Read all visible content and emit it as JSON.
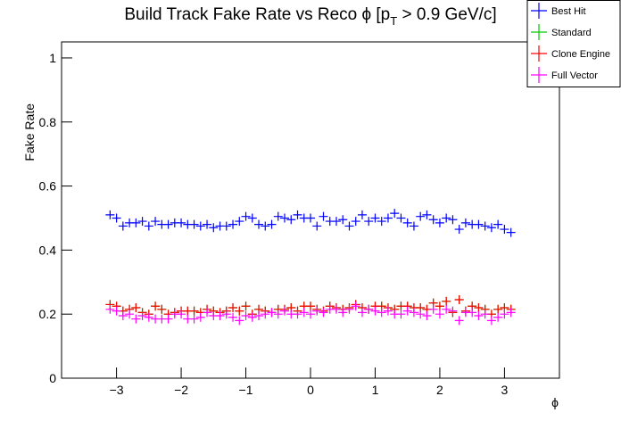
{
  "chart_data": {
    "type": "scatter",
    "title": [
      "Build Track Fake Rate vs Reco ϕ [p",
      "T",
      " > 0.9 GeV/c]"
    ],
    "x_label": "ϕ",
    "y_label": "Fake Rate",
    "xlim": [
      -3.85,
      3.85
    ],
    "ylim": [
      0,
      1.05
    ],
    "xticks": [
      {
        "value": -3,
        "label": "−3"
      },
      {
        "value": -2,
        "label": "−2"
      },
      {
        "value": -1,
        "label": "−1"
      },
      0,
      1,
      2,
      3
    ],
    "yticks": [
      0,
      0.2,
      0.4,
      0.6,
      0.8,
      1
    ],
    "legend": "top-right",
    "x": [
      -3.1,
      -3.0,
      -2.9,
      -2.8,
      -2.7,
      -2.6,
      -2.5,
      -2.4,
      -2.3,
      -2.2,
      -2.1,
      -2.0,
      -1.9,
      -1.8,
      -1.7,
      -1.6,
      -1.5,
      -1.4,
      -1.3,
      -1.2,
      -1.1,
      -1.0,
      -0.9,
      -0.8,
      -0.7,
      -0.6,
      -0.5,
      -0.4,
      -0.3,
      -0.2,
      -0.1,
      0.0,
      0.1,
      0.2,
      0.3,
      0.4,
      0.5,
      0.6,
      0.7,
      0.8,
      0.9,
      1.0,
      1.1,
      1.2,
      1.3,
      1.4,
      1.5,
      1.6,
      1.7,
      1.8,
      1.9,
      2.0,
      2.1,
      2.2,
      2.3,
      2.4,
      2.5,
      2.6,
      2.7,
      2.8,
      2.9,
      3.0,
      3.1
    ],
    "series": [
      {
        "name": "Best Hit",
        "color": "#0000ff",
        "values": [
          0.51,
          0.5,
          0.475,
          0.485,
          0.485,
          0.49,
          0.475,
          0.49,
          0.48,
          0.48,
          0.485,
          0.485,
          0.48,
          0.48,
          0.475,
          0.48,
          0.47,
          0.475,
          0.475,
          0.48,
          0.49,
          0.505,
          0.5,
          0.48,
          0.475,
          0.48,
          0.505,
          0.5,
          0.495,
          0.51,
          0.5,
          0.5,
          0.475,
          0.505,
          0.49,
          0.49,
          0.495,
          0.475,
          0.49,
          0.51,
          0.49,
          0.5,
          0.49,
          0.5,
          0.515,
          0.5,
          0.485,
          0.475,
          0.505,
          0.51,
          0.495,
          0.485,
          0.5,
          0.495,
          0.465,
          0.485,
          0.48,
          0.48,
          0.475,
          0.47,
          0.48,
          0.465,
          0.455
        ]
      },
      {
        "name": "Standard",
        "color": "#00cc00",
        "values": [
          0.23,
          0.225,
          0.21,
          0.215,
          0.22,
          0.205,
          0.2,
          0.225,
          0.215,
          0.2,
          0.205,
          0.21,
          0.21,
          0.21,
          0.205,
          0.215,
          0.21,
          0.205,
          0.21,
          0.22,
          0.21,
          0.225,
          0.2,
          0.215,
          0.21,
          0.205,
          0.215,
          0.215,
          0.22,
          0.21,
          0.225,
          0.225,
          0.215,
          0.21,
          0.225,
          0.22,
          0.215,
          0.22,
          0.23,
          0.22,
          0.215,
          0.225,
          0.225,
          0.22,
          0.215,
          0.225,
          0.225,
          0.22,
          0.22,
          0.215,
          0.235,
          0.225,
          0.24,
          0.205,
          0.245,
          0.21,
          0.225,
          0.22,
          0.215,
          0.2,
          0.215,
          0.22,
          0.215
        ]
      },
      {
        "name": "Clone Engine",
        "color": "#ff0000",
        "values": [
          0.23,
          0.225,
          0.21,
          0.215,
          0.22,
          0.205,
          0.2,
          0.225,
          0.215,
          0.2,
          0.205,
          0.21,
          0.21,
          0.21,
          0.205,
          0.215,
          0.21,
          0.205,
          0.21,
          0.22,
          0.21,
          0.225,
          0.2,
          0.215,
          0.21,
          0.205,
          0.215,
          0.215,
          0.22,
          0.21,
          0.225,
          0.225,
          0.215,
          0.21,
          0.225,
          0.22,
          0.215,
          0.22,
          0.23,
          0.22,
          0.215,
          0.225,
          0.225,
          0.22,
          0.215,
          0.225,
          0.225,
          0.22,
          0.22,
          0.215,
          0.235,
          0.225,
          0.24,
          0.205,
          0.245,
          0.21,
          0.225,
          0.22,
          0.215,
          0.2,
          0.215,
          0.22,
          0.215
        ]
      },
      {
        "name": "Full Vector",
        "color": "#ff00ff",
        "values": [
          0.215,
          0.21,
          0.195,
          0.2,
          0.185,
          0.195,
          0.19,
          0.185,
          0.185,
          0.185,
          0.2,
          0.2,
          0.185,
          0.185,
          0.19,
          0.205,
          0.195,
          0.195,
          0.2,
          0.19,
          0.18,
          0.195,
          0.19,
          0.195,
          0.2,
          0.205,
          0.2,
          0.21,
          0.2,
          0.2,
          0.205,
          0.2,
          0.21,
          0.205,
          0.215,
          0.215,
          0.205,
          0.215,
          0.225,
          0.205,
          0.215,
          0.21,
          0.205,
          0.21,
          0.2,
          0.2,
          0.21,
          0.205,
          0.2,
          0.195,
          0.215,
          0.2,
          0.215,
          0.21,
          0.18,
          0.205,
          0.205,
          0.195,
          0.2,
          0.18,
          0.19,
          0.2,
          0.205
        ]
      }
    ]
  }
}
